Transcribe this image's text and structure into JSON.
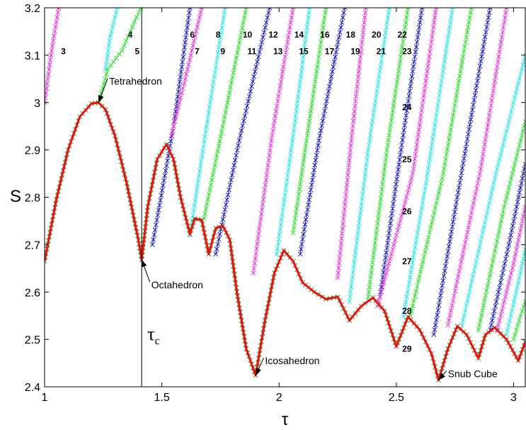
{
  "chart_data": {
    "type": "line",
    "xlabel": "τ",
    "ylabel": "S",
    "xlim": [
      1,
      3.05
    ],
    "ylim": [
      2.4,
      3.2
    ],
    "grid": false,
    "x_ticks": [
      "1",
      "1.5",
      "2",
      "2.5",
      "3"
    ],
    "x_tick_values": [
      1,
      1.5,
      2,
      2.5,
      3
    ],
    "y_ticks": [
      "2.4",
      "2.5",
      "2.6",
      "2.7",
      "2.8",
      "2.9",
      "3",
      "3.1",
      "3.2"
    ],
    "y_tick_values": [
      2.4,
      2.5,
      2.6,
      2.7,
      2.8,
      2.9,
      3.0,
      3.1,
      3.2
    ],
    "colors": {
      "red": "#e8140c",
      "magenta": "#e83ad8",
      "cyan": "#2ee6e6",
      "green": "#2edf2e",
      "blue": "#1c1cb8"
    },
    "tau_c": {
      "label": "τ",
      "subscript": "c",
      "x": 1.414
    },
    "envelope": {
      "color": "#e8140c",
      "x": [
        1.0,
        1.05,
        1.1,
        1.15,
        1.2,
        1.23,
        1.26,
        1.3,
        1.35,
        1.4,
        1.414,
        1.44,
        1.48,
        1.52,
        1.55,
        1.58,
        1.62,
        1.64,
        1.67,
        1.7,
        1.73,
        1.76,
        1.79,
        1.82,
        1.86,
        1.9,
        1.94,
        1.98,
        2.02,
        2.06,
        2.1,
        2.15,
        2.2,
        2.25,
        2.3,
        2.35,
        2.4,
        2.45,
        2.5,
        2.55,
        2.6,
        2.65,
        2.68,
        2.72,
        2.76,
        2.8,
        2.85,
        2.88,
        2.92,
        2.97,
        3.02,
        3.05
      ],
      "y": [
        2.665,
        2.795,
        2.9,
        2.97,
        2.998,
        3.0,
        2.985,
        2.93,
        2.83,
        2.71,
        2.668,
        2.78,
        2.88,
        2.912,
        2.88,
        2.8,
        2.722,
        2.755,
        2.752,
        2.68,
        2.735,
        2.74,
        2.71,
        2.6,
        2.48,
        2.424,
        2.54,
        2.64,
        2.688,
        2.665,
        2.62,
        2.6,
        2.585,
        2.59,
        2.54,
        2.57,
        2.588,
        2.56,
        2.485,
        2.548,
        2.52,
        2.47,
        2.414,
        2.48,
        2.528,
        2.51,
        2.46,
        2.51,
        2.525,
        2.5,
        2.455,
        2.495
      ]
    },
    "branches": [
      {
        "n": "3",
        "color": "#e83ad8",
        "x": [
          1.0,
          1.03,
          1.06
        ],
        "y": [
          3.0,
          3.11,
          3.2
        ]
      },
      {
        "n": "4",
        "color": "#2ee6e6",
        "x": [
          1.26,
          1.28,
          1.31
        ],
        "y": [
          3.07,
          3.14,
          3.2
        ]
      },
      {
        "n": "5",
        "color": "#2edf2e",
        "x": [
          1.23,
          1.27,
          1.33,
          1.41
        ],
        "y": [
          3.0,
          3.07,
          3.11,
          3.2
        ]
      },
      {
        "n": "6",
        "color": "#1c1cb8",
        "x": [
          1.46,
          1.55,
          1.62
        ],
        "y": [
          2.7,
          2.95,
          3.2
        ]
      },
      {
        "n": "7",
        "color": "#e83ad8",
        "x": [
          1.54,
          1.6,
          1.67
        ],
        "y": [
          2.93,
          3.05,
          3.2
        ]
      },
      {
        "n": "8",
        "color": "#2ee6e6",
        "x": [
          1.62,
          1.7,
          1.77
        ],
        "y": [
          2.72,
          2.98,
          3.2
        ]
      },
      {
        "n": "9",
        "color": "#2edf2e",
        "x": [
          1.68,
          1.78,
          1.86
        ],
        "y": [
          2.755,
          3.0,
          3.2
        ]
      },
      {
        "n": "10",
        "color": "#1c1cb8",
        "x": [
          1.73,
          1.83,
          1.96
        ],
        "y": [
          2.68,
          2.92,
          3.2
        ]
      },
      {
        "n": "11",
        "color": "#e83ad8",
        "x": [
          1.89,
          1.97,
          2.06
        ],
        "y": [
          2.64,
          2.93,
          3.2
        ]
      },
      {
        "n": "12",
        "color": "#2ee6e6",
        "x": [
          1.99,
          2.06,
          2.13
        ],
        "y": [
          2.68,
          2.93,
          3.2
        ]
      },
      {
        "n": "13",
        "color": "#2edf2e",
        "x": [
          2.06,
          2.12,
          2.2
        ],
        "y": [
          2.725,
          2.93,
          3.2
        ]
      },
      {
        "n": "14",
        "color": "#1c1cb8",
        "x": [
          2.09,
          2.17,
          2.28
        ],
        "y": [
          2.68,
          2.92,
          3.2
        ]
      },
      {
        "n": "15",
        "color": "#e83ad8",
        "x": [
          2.25,
          2.31,
          2.37
        ],
        "y": [
          2.63,
          2.93,
          3.2
        ]
      },
      {
        "n": "16",
        "color": "#2ee6e6",
        "x": [
          2.3,
          2.38,
          2.47
        ],
        "y": [
          2.58,
          2.9,
          3.2
        ]
      },
      {
        "n": "17",
        "color": "#2edf2e",
        "x": [
          2.38,
          2.46,
          2.55
        ],
        "y": [
          2.59,
          2.9,
          3.2
        ]
      },
      {
        "n": "18",
        "color": "#1c1cb8",
        "x": [
          2.43,
          2.52,
          2.61
        ],
        "y": [
          2.59,
          2.9,
          3.2
        ]
      },
      {
        "n": "19",
        "color": "#e83ad8",
        "x": [
          2.42,
          2.57,
          2.67
        ],
        "y": [
          2.57,
          2.85,
          3.2
        ]
      },
      {
        "n": "20",
        "color": "#2ee6e6",
        "x": [
          2.53,
          2.63,
          2.74
        ],
        "y": [
          2.548,
          2.84,
          3.2
        ]
      },
      {
        "n": "21",
        "color": "#2edf2e",
        "x": [
          2.56,
          2.7,
          2.82
        ],
        "y": [
          2.55,
          2.85,
          3.2
        ]
      },
      {
        "n": "22",
        "color": "#1c1cb8",
        "x": [
          2.66,
          2.76,
          2.9
        ],
        "y": [
          2.51,
          2.8,
          3.2
        ]
      },
      {
        "n": "23",
        "color": "#e83ad8",
        "x": [
          2.72,
          2.86,
          2.97
        ],
        "y": [
          2.53,
          2.86,
          3.2
        ]
      },
      {
        "n": "24",
        "color": "#2ee6e6",
        "x": [
          2.78,
          2.92,
          3.05
        ],
        "y": [
          2.53,
          2.84,
          3.1
        ]
      },
      {
        "n": "25",
        "color": "#2edf2e",
        "x": [
          2.85,
          2.96,
          3.05
        ],
        "y": [
          2.52,
          2.78,
          2.96
        ]
      },
      {
        "n": "26",
        "color": "#1c1cb8",
        "x": [
          2.9,
          2.98,
          3.05
        ],
        "y": [
          2.52,
          2.7,
          2.87
        ]
      },
      {
        "n": "27",
        "color": "#e83ad8",
        "x": [
          2.93,
          3.0,
          3.05
        ],
        "y": [
          2.52,
          2.66,
          2.78
        ]
      },
      {
        "n": "28",
        "color": "#2ee6e6",
        "x": [
          2.97,
          3.02,
          3.05
        ],
        "y": [
          2.51,
          2.62,
          2.69
        ]
      },
      {
        "n": "29",
        "color": "#2edf2e",
        "x": [
          3.0,
          3.03,
          3.05
        ],
        "y": [
          2.5,
          2.55,
          2.58
        ]
      }
    ],
    "number_labels": [
      {
        "text": "3",
        "x": 1.07,
        "y": 3.108
      },
      {
        "text": "4",
        "x": 1.355,
        "y": 3.143
      },
      {
        "text": "5",
        "x": 1.385,
        "y": 3.108
      },
      {
        "text": "6",
        "x": 1.62,
        "y": 3.143
      },
      {
        "text": "7",
        "x": 1.64,
        "y": 3.108
      },
      {
        "text": "8",
        "x": 1.73,
        "y": 3.143
      },
      {
        "text": "9",
        "x": 1.75,
        "y": 3.108
      },
      {
        "text": "10",
        "x": 1.845,
        "y": 3.143
      },
      {
        "text": "11",
        "x": 1.865,
        "y": 3.108
      },
      {
        "text": "12",
        "x": 1.955,
        "y": 3.143
      },
      {
        "text": "13",
        "x": 1.975,
        "y": 3.108
      },
      {
        "text": "14",
        "x": 2.065,
        "y": 3.143
      },
      {
        "text": "15",
        "x": 2.085,
        "y": 3.108
      },
      {
        "text": "16",
        "x": 2.175,
        "y": 3.143
      },
      {
        "text": "17",
        "x": 2.195,
        "y": 3.108
      },
      {
        "text": "18",
        "x": 2.285,
        "y": 3.143
      },
      {
        "text": "19",
        "x": 2.305,
        "y": 3.108
      },
      {
        "text": "20",
        "x": 2.395,
        "y": 3.143
      },
      {
        "text": "21",
        "x": 2.415,
        "y": 3.108
      },
      {
        "text": "22",
        "x": 2.505,
        "y": 3.143
      },
      {
        "text": "23",
        "x": 2.525,
        "y": 3.108
      },
      {
        "text": "24",
        "x": 2.525,
        "y": 2.99
      },
      {
        "text": "25",
        "x": 2.525,
        "y": 2.88
      },
      {
        "text": "26",
        "x": 2.525,
        "y": 2.77
      },
      {
        "text": "27",
        "x": 2.525,
        "y": 2.665
      },
      {
        "text": "28",
        "x": 2.525,
        "y": 2.56
      },
      {
        "text": "29",
        "x": 2.525,
        "y": 2.48
      }
    ],
    "annotations": [
      {
        "text": "Tetrahedron",
        "point": [
          1.23,
          3.0
        ],
        "text_pos": [
          1.275,
          3.045
        ]
      },
      {
        "text": "Octahedron",
        "point": [
          1.414,
          2.668
        ],
        "text_pos": [
          1.455,
          2.615
        ]
      },
      {
        "text": "Icosahedron",
        "point": [
          1.9,
          2.424
        ],
        "text_pos": [
          1.94,
          2.455
        ]
      },
      {
        "text": "Snub Cube",
        "point": [
          2.68,
          2.414
        ],
        "text_pos": [
          2.72,
          2.428
        ]
      }
    ]
  }
}
